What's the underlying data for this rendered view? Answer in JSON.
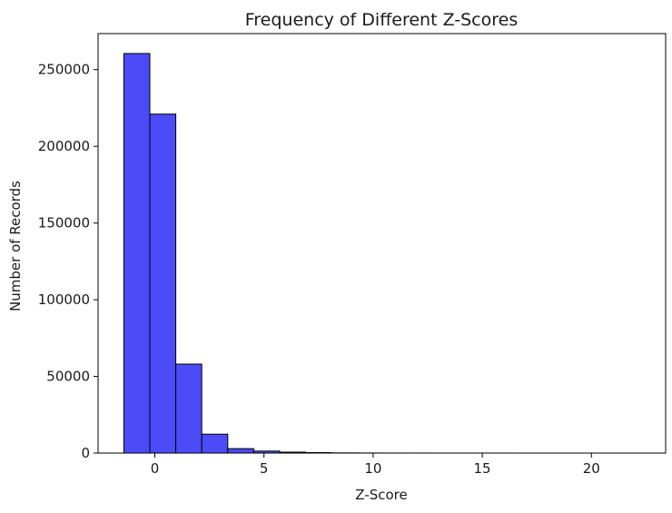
{
  "chart_data": {
    "type": "bar",
    "title": "Frequency of Different Z-Scores",
    "xlabel": "Z-Score",
    "ylabel": "Number of Records",
    "xlim": [
      -2.6,
      23.4
    ],
    "ylim": [
      0,
      273500
    ],
    "xticks": [
      0,
      5,
      10,
      15,
      20
    ],
    "yticks": [
      0,
      50000,
      100000,
      150000,
      200000,
      250000
    ],
    "bin_edges": [
      -1.42,
      -0.23,
      0.96,
      2.15,
      3.34,
      4.53,
      5.72,
      6.91,
      8.1,
      9.29,
      10.48,
      11.67,
      12.86,
      14.05,
      15.24,
      16.43,
      17.62,
      18.81,
      20.0,
      21.19,
      22.38
    ],
    "values": [
      260500,
      221000,
      58000,
      12300,
      2900,
      1300,
      600,
      300,
      120,
      60,
      30,
      15,
      8,
      5,
      3,
      2,
      1,
      1,
      1,
      1
    ],
    "colors": {
      "bar_fill": "#4b4bf7",
      "bar_edge": "#000000",
      "axis": "#000000"
    },
    "grid": false,
    "legend": "none"
  }
}
